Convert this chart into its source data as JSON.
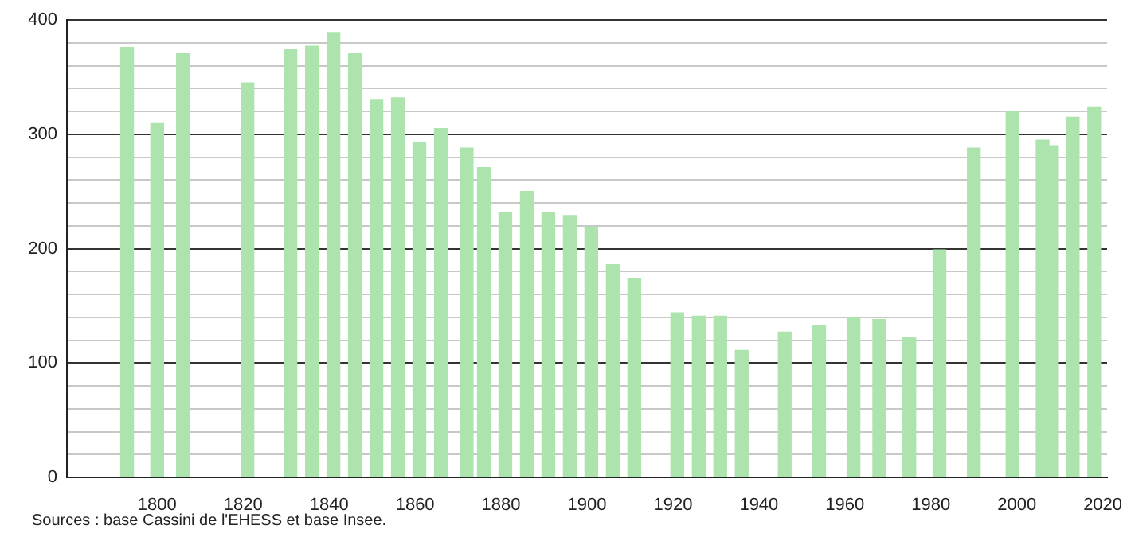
{
  "chart_data": {
    "type": "bar",
    "color": "#ade3ad",
    "x": [
      1793,
      1800,
      1806,
      1821,
      1831,
      1836,
      1841,
      1846,
      1851,
      1856,
      1861,
      1866,
      1872,
      1876,
      1881,
      1886,
      1891,
      1896,
      1901,
      1906,
      1911,
      1921,
      1926,
      1931,
      1936,
      1946,
      1954,
      1962,
      1968,
      1975,
      1982,
      1990,
      1999,
      2006,
      2008,
      2013,
      2018
    ],
    "values": [
      376,
      310,
      371,
      345,
      374,
      377,
      389,
      371,
      330,
      332,
      293,
      305,
      288,
      271,
      232,
      250,
      232,
      229,
      219,
      186,
      174,
      144,
      141,
      141,
      111,
      127,
      133,
      140,
      138,
      122,
      199,
      288,
      320,
      295,
      290,
      315,
      324
    ],
    "xlim": [
      1779,
      2021
    ],
    "xticks": [
      1800,
      1820,
      1840,
      1860,
      1880,
      1900,
      1920,
      1940,
      1960,
      1980,
      2000,
      2020
    ],
    "ylim": [
      0,
      400
    ],
    "yticks": [
      0,
      {
        "value": 20,
        "label": null
      },
      {
        "value": 40,
        "label": null
      },
      {
        "value": 60,
        "label": null
      },
      {
        "value": 80,
        "label": null
      },
      100,
      {
        "value": 120,
        "label": null
      },
      {
        "value": 140,
        "label": null
      },
      {
        "value": 160,
        "label": null
      },
      {
        "value": 180,
        "label": null
      },
      200,
      {
        "value": 220,
        "label": null
      },
      {
        "value": 240,
        "label": null
      },
      {
        "value": 260,
        "label": null
      },
      {
        "value": 280,
        "label": null
      },
      300,
      {
        "value": 320,
        "label": null
      },
      {
        "value": 340,
        "label": null
      },
      {
        "value": 360,
        "label": null
      },
      {
        "value": 380,
        "label": null
      },
      400
    ],
    "grid": "y",
    "legend": false,
    "annotations": [
      "Sources : base Cassini de l'EHESS et base Insee."
    ]
  }
}
